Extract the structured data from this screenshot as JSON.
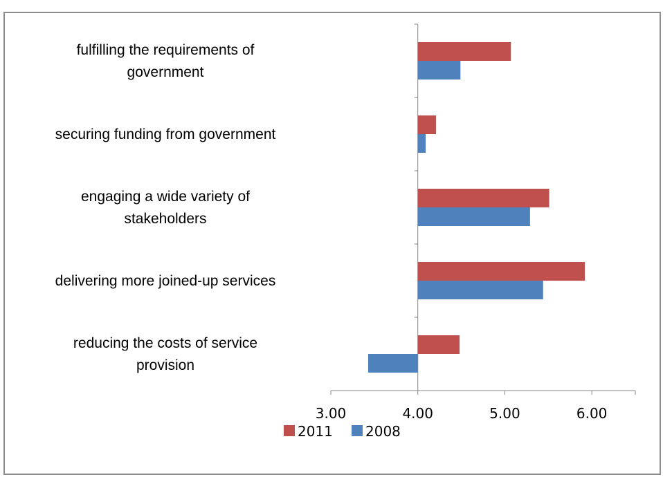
{
  "chart_data": {
    "type": "bar",
    "orientation": "horizontal",
    "categories": [
      "fulfilling the requirements of government",
      "securing funding from government",
      "engaging a wide variety of stakeholders",
      "delivering more joined-up services",
      "reducing the costs of service provision"
    ],
    "category_label_lines": [
      [
        "fulfilling the requirements of",
        "government"
      ],
      [
        "securing funding from government"
      ],
      [
        "engaging a wide variety of",
        "stakeholders"
      ],
      [
        "delivering more joined-up services"
      ],
      [
        "reducing the costs of service",
        "provision"
      ]
    ],
    "series": [
      {
        "name": "2011",
        "color": "#c0504d",
        "values": [
          5.07,
          4.21,
          5.51,
          5.92,
          4.48
        ]
      },
      {
        "name": "2008",
        "color": "#4f81bd",
        "values": [
          4.49,
          4.09,
          5.29,
          5.44,
          3.43
        ]
      }
    ],
    "baseline": 4.0,
    "xlim": [
      3.0,
      6.5
    ],
    "xticks": [
      3.0,
      4.0,
      5.0,
      6.0
    ],
    "xtick_labels": [
      "3.00",
      "4.00",
      "5.00",
      "6.00"
    ],
    "title": "",
    "xlabel": "",
    "ylabel": "",
    "grid": false,
    "legend_position": "bottom"
  }
}
